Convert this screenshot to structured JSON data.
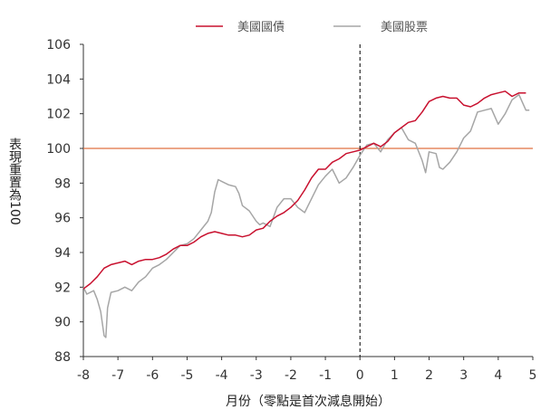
{
  "chart_data": {
    "type": "line",
    "title": "",
    "xlabel": "月份（零點是首次減息開始）",
    "ylabel": "表現重置為100",
    "xlim": [
      -8,
      5
    ],
    "ylim": [
      88,
      106
    ],
    "x_ticks": [
      "-8",
      "-7",
      "-6",
      "-5",
      "-4",
      "-3",
      "-2",
      "-1",
      "0",
      "1",
      "2",
      "3",
      "4",
      "5"
    ],
    "y_ticks": [
      "88",
      "90",
      "92",
      "94",
      "96",
      "98",
      "100",
      "102",
      "104",
      "106"
    ],
    "reference_line": {
      "y": 100,
      "color": "#e07040"
    },
    "vertical_marker": {
      "x": 0,
      "style": "dashed",
      "color": "#000000"
    },
    "legend_position": "top-center",
    "series": [
      {
        "name": "美國國債",
        "color": "#c8102e",
        "points": [
          [
            -8,
            91.9
          ],
          [
            -7.8,
            92.2
          ],
          [
            -7.6,
            92.6
          ],
          [
            -7.4,
            93.1
          ],
          [
            -7.2,
            93.3
          ],
          [
            -7.0,
            93.4
          ],
          [
            -6.8,
            93.5
          ],
          [
            -6.6,
            93.3
          ],
          [
            -6.4,
            93.5
          ],
          [
            -6.2,
            93.6
          ],
          [
            -6.0,
            93.6
          ],
          [
            -5.8,
            93.7
          ],
          [
            -5.6,
            93.9
          ],
          [
            -5.4,
            94.2
          ],
          [
            -5.2,
            94.4
          ],
          [
            -5.0,
            94.4
          ],
          [
            -4.8,
            94.6
          ],
          [
            -4.6,
            94.9
          ],
          [
            -4.4,
            95.1
          ],
          [
            -4.2,
            95.2
          ],
          [
            -4.0,
            95.1
          ],
          [
            -3.8,
            95.0
          ],
          [
            -3.6,
            95.0
          ],
          [
            -3.4,
            94.9
          ],
          [
            -3.2,
            95.0
          ],
          [
            -3.0,
            95.3
          ],
          [
            -2.8,
            95.4
          ],
          [
            -2.6,
            95.8
          ],
          [
            -2.4,
            96.1
          ],
          [
            -2.2,
            96.3
          ],
          [
            -2.0,
            96.6
          ],
          [
            -1.8,
            97.0
          ],
          [
            -1.6,
            97.6
          ],
          [
            -1.4,
            98.3
          ],
          [
            -1.2,
            98.8
          ],
          [
            -1.0,
            98.8
          ],
          [
            -0.8,
            99.2
          ],
          [
            -0.6,
            99.4
          ],
          [
            -0.4,
            99.7
          ],
          [
            -0.2,
            99.8
          ],
          [
            0.0,
            99.9
          ],
          [
            0.2,
            100.1
          ],
          [
            0.4,
            100.3
          ],
          [
            0.6,
            100.1
          ],
          [
            0.8,
            100.4
          ],
          [
            1.0,
            100.9
          ],
          [
            1.2,
            101.2
          ],
          [
            1.4,
            101.5
          ],
          [
            1.6,
            101.6
          ],
          [
            1.8,
            102.1
          ],
          [
            2.0,
            102.7
          ],
          [
            2.2,
            102.9
          ],
          [
            2.4,
            103.0
          ],
          [
            2.6,
            102.9
          ],
          [
            2.8,
            102.9
          ],
          [
            3.0,
            102.5
          ],
          [
            3.2,
            102.4
          ],
          [
            3.4,
            102.6
          ],
          [
            3.6,
            102.9
          ],
          [
            3.8,
            103.1
          ],
          [
            4.0,
            103.2
          ],
          [
            4.2,
            103.3
          ],
          [
            4.4,
            103.0
          ],
          [
            4.6,
            103.2
          ],
          [
            4.8,
            103.2
          ]
        ]
      },
      {
        "name": "美國股票",
        "color": "#a6a6a6",
        "points": [
          [
            -8,
            92.0
          ],
          [
            -7.9,
            91.6
          ],
          [
            -7.7,
            91.8
          ],
          [
            -7.6,
            91.3
          ],
          [
            -7.5,
            90.6
          ],
          [
            -7.4,
            89.2
          ],
          [
            -7.35,
            89.1
          ],
          [
            -7.3,
            90.8
          ],
          [
            -7.2,
            91.7
          ],
          [
            -7.0,
            91.8
          ],
          [
            -6.8,
            92.0
          ],
          [
            -6.6,
            91.8
          ],
          [
            -6.4,
            92.3
          ],
          [
            -6.2,
            92.6
          ],
          [
            -6.0,
            93.1
          ],
          [
            -5.8,
            93.3
          ],
          [
            -5.6,
            93.6
          ],
          [
            -5.4,
            94.0
          ],
          [
            -5.2,
            94.4
          ],
          [
            -5.0,
            94.5
          ],
          [
            -4.8,
            94.8
          ],
          [
            -4.6,
            95.3
          ],
          [
            -4.4,
            95.8
          ],
          [
            -4.3,
            96.3
          ],
          [
            -4.2,
            97.5
          ],
          [
            -4.1,
            98.2
          ],
          [
            -4.0,
            98.1
          ],
          [
            -3.8,
            97.9
          ],
          [
            -3.6,
            97.8
          ],
          [
            -3.5,
            97.4
          ],
          [
            -3.4,
            96.7
          ],
          [
            -3.2,
            96.4
          ],
          [
            -3.0,
            95.8
          ],
          [
            -2.9,
            95.6
          ],
          [
            -2.8,
            95.7
          ],
          [
            -2.6,
            95.5
          ],
          [
            -2.4,
            96.6
          ],
          [
            -2.2,
            97.1
          ],
          [
            -2.0,
            97.1
          ],
          [
            -1.8,
            96.6
          ],
          [
            -1.6,
            96.3
          ],
          [
            -1.4,
            97.1
          ],
          [
            -1.2,
            97.9
          ],
          [
            -1.0,
            98.4
          ],
          [
            -0.8,
            98.8
          ],
          [
            -0.6,
            98.0
          ],
          [
            -0.4,
            98.3
          ],
          [
            -0.2,
            98.9
          ],
          [
            0.0,
            99.6
          ],
          [
            0.2,
            100.2
          ],
          [
            0.4,
            100.3
          ],
          [
            0.6,
            99.8
          ],
          [
            0.8,
            100.5
          ],
          [
            1.0,
            100.9
          ],
          [
            1.2,
            101.2
          ],
          [
            1.4,
            100.5
          ],
          [
            1.6,
            100.3
          ],
          [
            1.8,
            99.3
          ],
          [
            1.9,
            98.6
          ],
          [
            2.0,
            99.8
          ],
          [
            2.2,
            99.7
          ],
          [
            2.3,
            98.9
          ],
          [
            2.4,
            98.8
          ],
          [
            2.6,
            99.2
          ],
          [
            2.8,
            99.8
          ],
          [
            3.0,
            100.6
          ],
          [
            3.2,
            101.0
          ],
          [
            3.4,
            102.1
          ],
          [
            3.6,
            102.2
          ],
          [
            3.8,
            102.3
          ],
          [
            4.0,
            101.4
          ],
          [
            4.2,
            102.0
          ],
          [
            4.4,
            102.8
          ],
          [
            4.6,
            103.1
          ],
          [
            4.8,
            102.2
          ],
          [
            4.9,
            102.2
          ]
        ]
      }
    ]
  }
}
